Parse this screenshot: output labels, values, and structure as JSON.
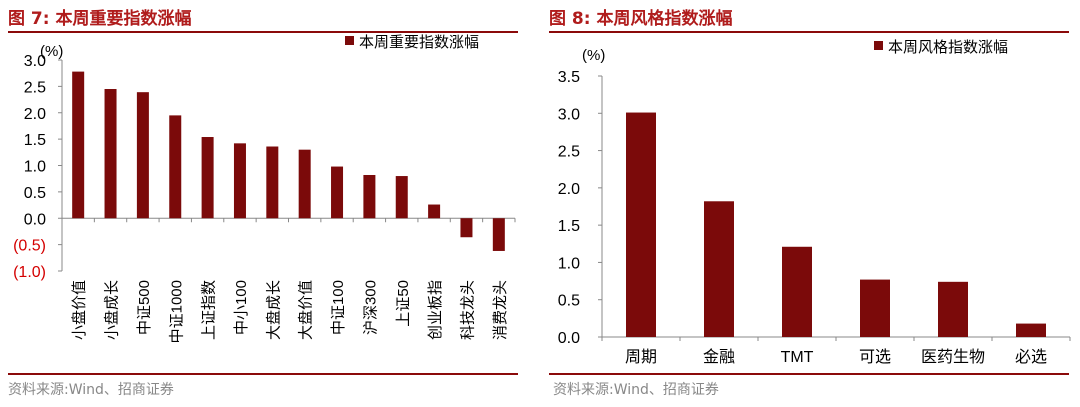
{
  "figures": [
    {
      "title": "图 7:  本周重要指数涨幅",
      "source": "资料来源:Wind、招商证券"
    },
    {
      "title": "图 8:  本周风格指数涨幅",
      "source": "资料来源:Wind、招商证券"
    }
  ],
  "colors": {
    "bar": "#7b0a0a",
    "title": "#b01c1c",
    "negative_tick": "#d40000",
    "rule": "#8b0a0a"
  },
  "chart_data": [
    {
      "type": "bar",
      "title": "本周重要指数涨幅",
      "unit_label": "(%)",
      "legend": "本周重要指数涨幅",
      "legend_position": "top-right",
      "categories": [
        "小盘价值",
        "小盘成长",
        "中证500",
        "中证1000",
        "上证指数",
        "中小100",
        "大盘成长",
        "大盘价值",
        "中证100",
        "沪深300",
        "上证50",
        "创业板指",
        "科技龙头",
        "消费龙头"
      ],
      "values": [
        2.78,
        2.45,
        2.39,
        1.95,
        1.54,
        1.42,
        1.36,
        1.3,
        0.98,
        0.82,
        0.8,
        0.26,
        -0.36,
        -0.62
      ],
      "yticks": [
        "3.0",
        "2.5",
        "2.0",
        "1.5",
        "1.0",
        "0.5",
        "0.0",
        "(0.5)",
        "(1.0)"
      ],
      "ylim": [
        -1.0,
        3.0
      ]
    },
    {
      "type": "bar",
      "title": "本周风格指数涨幅",
      "unit_label": "(%)",
      "legend": "本周风格指数涨幅",
      "legend_position": "top-right",
      "categories": [
        "周期",
        "金融",
        "TMT",
        "可选",
        "医药生物",
        "必选"
      ],
      "values": [
        3.01,
        1.82,
        1.21,
        0.77,
        0.74,
        0.18
      ],
      "yticks": [
        "3.5",
        "3.0",
        "2.5",
        "2.0",
        "1.5",
        "1.0",
        "0.5",
        "0.0"
      ],
      "ylim": [
        0,
        3.5
      ]
    }
  ]
}
